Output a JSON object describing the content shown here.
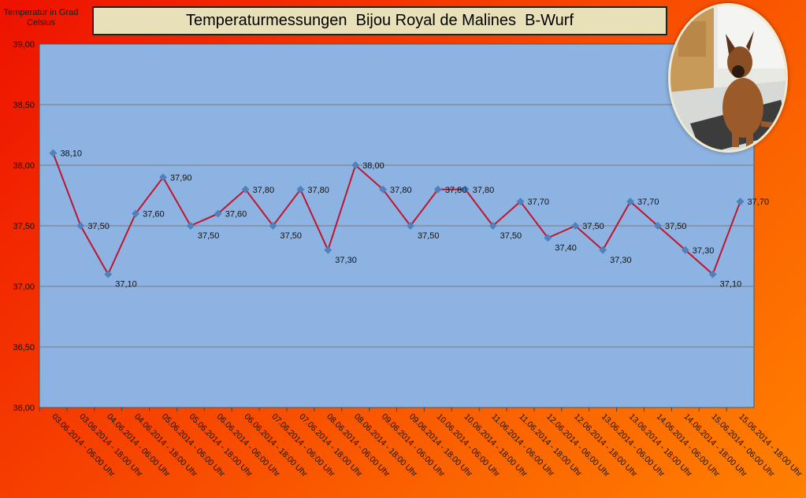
{
  "chart_data": {
    "type": "line",
    "title": "Temperaturmessungen  Bijou Royal de Malines  B-Wurf",
    "ylabel": "Temperatur in Grad Celsius",
    "ylim": [
      36.0,
      39.0
    ],
    "yticks": [
      "36,00",
      "36,50",
      "37,00",
      "37,50",
      "38,00",
      "38,50",
      "39,00"
    ],
    "grid": true,
    "categories": [
      "03.06.2014 - 06:00 Uhr",
      "03.06.2014 - 18:00 Uhr",
      "04.06.2014 - 06:00 Uhr",
      "04.06.2014 - 18:00 Uhr",
      "05.06.2014 - 06:00 Uhr",
      "05.06.2014 - 18:00 Uhr",
      "06.06.2014 - 06:00 Uhr",
      "06.06.2014 - 18:00 Uhr",
      "07.06.2014 - 06:00 Uhr",
      "07.06.2014 - 18:00 Uhr",
      "08.06.2014 - 06:00 Uhr",
      "08.06.2014 - 18:00 Uhr",
      "09.06.2014 - 06:00 Uhr",
      "09.06.2014 - 18:00 Uhr",
      "10.06.2014 - 06:00 Uhr",
      "10.06.2014 - 18:00 Uhr",
      "11.06.2014 - 06:00 Uhr",
      "11.06.2014 - 18:00 Uhr",
      "12.06.2014 - 06:00 Uhr",
      "12.06.2014 - 18:00 Uhr",
      "13.06.2014 - 06:00 Uhr",
      "13.06.2014 - 18:00 Uhr",
      "14.06.2014 - 06:00 Uhr",
      "14.06.2014 - 18:00 Uhr",
      "15.06.2014 - 06:00 Uhr",
      "15.06.2014 - 18:00 Uhr"
    ],
    "values": [
      38.1,
      37.5,
      37.1,
      37.6,
      37.9,
      37.5,
      37.6,
      37.8,
      37.5,
      37.8,
      37.3,
      38.0,
      37.8,
      37.5,
      37.8,
      37.8,
      37.5,
      37.7,
      37.4,
      37.5,
      37.3,
      37.7,
      37.5,
      37.3,
      37.1,
      37.7
    ],
    "data_labels": [
      "38,10",
      "37,50",
      "37,10",
      "37,60",
      "37,90",
      "37,50",
      "37,60",
      "37,80",
      "37,50",
      "37,80",
      "37,30",
      "38,00",
      "37,80",
      "37,50",
      "37,80",
      "37,80",
      "37,50",
      "37,70",
      "37,40",
      "37,50",
      "37,30",
      "37,70",
      "37,50",
      "37,30",
      "37,10",
      "37,70"
    ],
    "colors": {
      "plot_background": "#8db3e2",
      "line": "#c0142c",
      "marker": "#4f81bd",
      "gridline": "#7a7a7a",
      "title_box": "#e8e0b8"
    }
  },
  "photo": {
    "icon": "dog-photo"
  }
}
